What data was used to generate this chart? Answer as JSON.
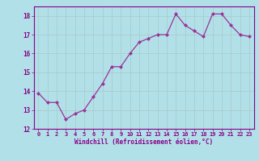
{
  "x": [
    0,
    1,
    2,
    3,
    4,
    5,
    6,
    7,
    8,
    9,
    10,
    11,
    12,
    13,
    14,
    15,
    16,
    17,
    18,
    19,
    20,
    21,
    22,
    23
  ],
  "y": [
    13.9,
    13.4,
    13.4,
    12.5,
    12.8,
    13.0,
    13.7,
    14.4,
    15.3,
    15.3,
    16.0,
    16.6,
    16.8,
    17.0,
    17.0,
    18.1,
    17.5,
    17.2,
    16.9,
    18.1,
    18.1,
    17.5,
    17.0,
    16.9
  ],
  "line_color": "#993399",
  "marker": "D",
  "marker_size": 2,
  "bg_color": "#b2e0e8",
  "grid_color": "#aacccc",
  "xlabel": "Windchill (Refroidissement éolien,°C)",
  "xlim": [
    -0.5,
    23.5
  ],
  "ylim": [
    12,
    18.5
  ],
  "yticks": [
    12,
    13,
    14,
    15,
    16,
    17,
    18
  ],
  "xticks": [
    0,
    1,
    2,
    3,
    4,
    5,
    6,
    7,
    8,
    9,
    10,
    11,
    12,
    13,
    14,
    15,
    16,
    17,
    18,
    19,
    20,
    21,
    22,
    23
  ],
  "label_color": "#880088",
  "tick_color": "#880088",
  "axis_color": "#880088",
  "font_family": "monospace",
  "tick_fontsize": 5.0,
  "label_fontsize": 5.5
}
